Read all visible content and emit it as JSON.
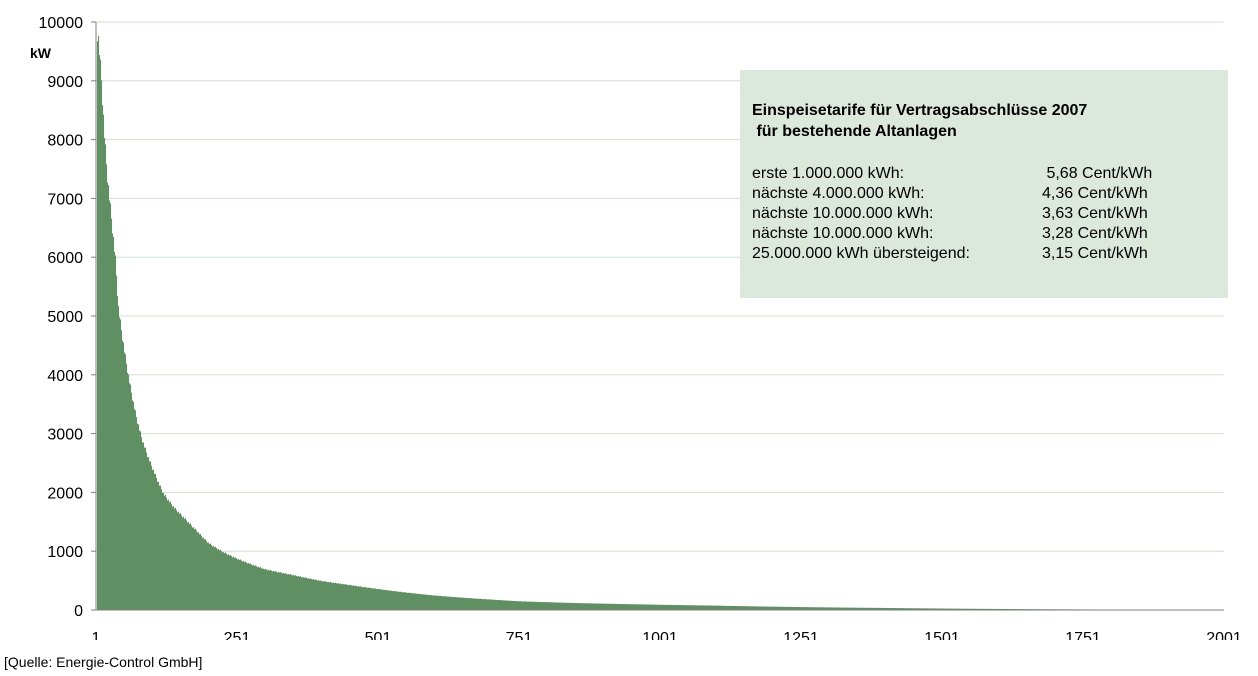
{
  "chart_data": {
    "type": "bar",
    "title": "",
    "xlabel": "",
    "ylabel": "kW",
    "ylim": [
      0,
      10000
    ],
    "xlim": [
      1,
      2001
    ],
    "x_ticks": [
      "1",
      "251",
      "501",
      "751",
      "1001",
      "1251",
      "1501",
      "1751",
      "2001"
    ],
    "y_ticks": [
      "0",
      "1000",
      "2000",
      "3000",
      "4000",
      "5000",
      "6000",
      "7000",
      "8000",
      "9000",
      "10000"
    ],
    "sorted_descending": true,
    "bar_color": "#5f8f62",
    "grid": "horizontal",
    "profile_points": [
      {
        "x": 1,
        "y": 10000
      },
      {
        "x": 5,
        "y": 9800
      },
      {
        "x": 10,
        "y": 9100
      },
      {
        "x": 15,
        "y": 8200
      },
      {
        "x": 20,
        "y": 7500
      },
      {
        "x": 25,
        "y": 7000
      },
      {
        "x": 30,
        "y": 6500
      },
      {
        "x": 35,
        "y": 6000
      },
      {
        "x": 40,
        "y": 5200
      },
      {
        "x": 50,
        "y": 4500
      },
      {
        "x": 60,
        "y": 3900
      },
      {
        "x": 70,
        "y": 3400
      },
      {
        "x": 80,
        "y": 3000
      },
      {
        "x": 90,
        "y": 2700
      },
      {
        "x": 100,
        "y": 2450
      },
      {
        "x": 120,
        "y": 2000
      },
      {
        "x": 140,
        "y": 1750
      },
      {
        "x": 160,
        "y": 1550
      },
      {
        "x": 180,
        "y": 1350
      },
      {
        "x": 200,
        "y": 1150
      },
      {
        "x": 225,
        "y": 1000
      },
      {
        "x": 251,
        "y": 880
      },
      {
        "x": 300,
        "y": 700
      },
      {
        "x": 350,
        "y": 600
      },
      {
        "x": 400,
        "y": 500
      },
      {
        "x": 450,
        "y": 430
      },
      {
        "x": 501,
        "y": 360
      },
      {
        "x": 600,
        "y": 250
      },
      {
        "x": 700,
        "y": 180
      },
      {
        "x": 751,
        "y": 150
      },
      {
        "x": 850,
        "y": 120
      },
      {
        "x": 1001,
        "y": 90
      },
      {
        "x": 1100,
        "y": 75
      },
      {
        "x": 1251,
        "y": 50
      },
      {
        "x": 1400,
        "y": 35
      },
      {
        "x": 1501,
        "y": 25
      },
      {
        "x": 1600,
        "y": 18
      },
      {
        "x": 1751,
        "y": 10
      },
      {
        "x": 1900,
        "y": 5
      },
      {
        "x": 2001,
        "y": 3
      }
    ]
  },
  "tariff_box": {
    "title_line1": "Einspeisetarife für Vertragsabschlüsse 2007",
    "title_line2": " für bestehende Altanlagen",
    "rows": [
      {
        "label": "erste 1.000.000 kWh:",
        "value": " 5,68 Cent/kWh"
      },
      {
        "label": "nächste 4.000.000 kWh:",
        "value": "4,36 Cent/kWh"
      },
      {
        "label": "nächste 10.000.000 kWh:",
        "value": "3,63 Cent/kWh"
      },
      {
        "label": "nächste 10.000.000 kWh:",
        "value": "3,28 Cent/kWh"
      },
      {
        "label": "25.000.000 kWh übersteigend:",
        "value": "3,15 Cent/kWh"
      }
    ]
  },
  "source": "[Quelle: Energie-Control GmbH]"
}
